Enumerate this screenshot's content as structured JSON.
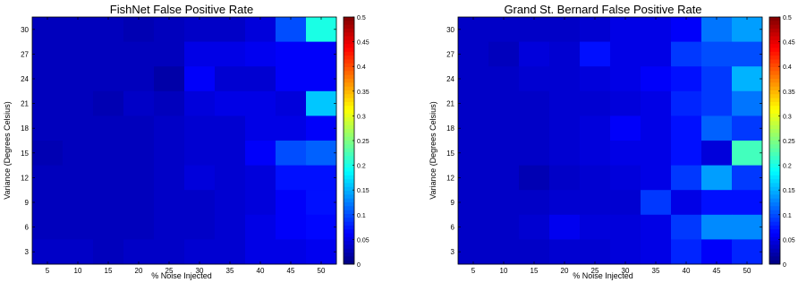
{
  "chart_data": [
    {
      "type": "heatmap",
      "title": "FishNet False Positive Rate",
      "xlabel": "% Noise Injected",
      "ylabel": "Variance (Degrees Celsius)",
      "x": [
        5,
        10,
        15,
        20,
        25,
        30,
        35,
        40,
        45,
        50
      ],
      "y": [
        3,
        6,
        9,
        12,
        15,
        18,
        21,
        24,
        27,
        30
      ],
      "x_tick_labels": [
        "5",
        "10",
        "15",
        "20",
        "25",
        "30",
        "35",
        "40",
        "45",
        "50"
      ],
      "y_tick_labels": [
        "3",
        "6",
        "9",
        "12",
        "15",
        "18",
        "21",
        "24",
        "27",
        "30"
      ],
      "colorbar_ticks": [
        "0",
        "0.05",
        "0.1",
        "0.15",
        "0.2",
        "0.25",
        "0.3",
        "0.35",
        "0.4",
        "0.45",
        "0.5"
      ],
      "clim": [
        0,
        0.5
      ],
      "colormap": "jet",
      "values_note_rows": "rows listed from y=30 (top) down to y=3 (bottom)",
      "values": [
        [
          0.03,
          0.03,
          0.03,
          0.025,
          0.03,
          0.035,
          0.035,
          0.045,
          0.1,
          0.2
        ],
        [
          0.03,
          0.03,
          0.03,
          0.03,
          0.03,
          0.05,
          0.05,
          0.055,
          0.06,
          0.06
        ],
        [
          0.03,
          0.03,
          0.03,
          0.03,
          0.02,
          0.06,
          0.04,
          0.04,
          0.06,
          0.06
        ],
        [
          0.03,
          0.03,
          0.025,
          0.035,
          0.03,
          0.045,
          0.05,
          0.05,
          0.045,
          0.16
        ],
        [
          0.03,
          0.03,
          0.03,
          0.03,
          0.035,
          0.04,
          0.04,
          0.05,
          0.05,
          0.06
        ],
        [
          0.025,
          0.03,
          0.03,
          0.03,
          0.035,
          0.04,
          0.04,
          0.06,
          0.1,
          0.11
        ],
        [
          0.03,
          0.03,
          0.03,
          0.03,
          0.035,
          0.045,
          0.04,
          0.045,
          0.07,
          0.07
        ],
        [
          0.03,
          0.03,
          0.03,
          0.03,
          0.035,
          0.035,
          0.04,
          0.045,
          0.06,
          0.07
        ],
        [
          0.03,
          0.03,
          0.03,
          0.03,
          0.035,
          0.035,
          0.04,
          0.05,
          0.06,
          0.065
        ],
        [
          0.035,
          0.035,
          0.03,
          0.035,
          0.035,
          0.04,
          0.04,
          0.05,
          0.05,
          0.055
        ]
      ]
    },
    {
      "type": "heatmap",
      "title": "Grand St. Bernard False Positive Rate",
      "xlabel": "% Noise Injected",
      "ylabel": "Variance (Degrees Celsius)",
      "x": [
        5,
        10,
        15,
        20,
        25,
        30,
        35,
        40,
        45,
        50
      ],
      "y": [
        3,
        6,
        9,
        12,
        15,
        18,
        21,
        24,
        27,
        30
      ],
      "x_tick_labels": [
        "5",
        "10",
        "15",
        "20",
        "25",
        "30",
        "35",
        "40",
        "45",
        "50"
      ],
      "y_tick_labels": [
        "3",
        "6",
        "9",
        "12",
        "15",
        "18",
        "21",
        "24",
        "27",
        "30"
      ],
      "colorbar_ticks": [
        "0",
        "0.05",
        "0.1",
        "0.15",
        "0.2",
        "0.25",
        "0.3",
        "0.35",
        "0.4",
        "0.45",
        "0.5"
      ],
      "clim": [
        0,
        0.5
      ],
      "colormap": "jet",
      "values_note_rows": "rows listed from y=30 (top) down to y=3 (bottom)",
      "values": [
        [
          0.035,
          0.035,
          0.035,
          0.035,
          0.04,
          0.05,
          0.05,
          0.06,
          0.12,
          0.14
        ],
        [
          0.035,
          0.03,
          0.045,
          0.04,
          0.07,
          0.05,
          0.05,
          0.09,
          0.1,
          0.1
        ],
        [
          0.035,
          0.035,
          0.04,
          0.04,
          0.045,
          0.05,
          0.06,
          0.07,
          0.09,
          0.15
        ],
        [
          0.035,
          0.035,
          0.035,
          0.04,
          0.04,
          0.045,
          0.05,
          0.08,
          0.09,
          0.12
        ],
        [
          0.035,
          0.035,
          0.035,
          0.04,
          0.045,
          0.06,
          0.05,
          0.07,
          0.11,
          0.09
        ],
        [
          0.035,
          0.035,
          0.035,
          0.04,
          0.045,
          0.05,
          0.05,
          0.07,
          0.045,
          0.22
        ],
        [
          0.035,
          0.035,
          0.025,
          0.035,
          0.04,
          0.045,
          0.05,
          0.09,
          0.14,
          0.09
        ],
        [
          0.035,
          0.035,
          0.035,
          0.04,
          0.04,
          0.04,
          0.09,
          0.05,
          0.07,
          0.07
        ],
        [
          0.035,
          0.035,
          0.04,
          0.055,
          0.045,
          0.045,
          0.05,
          0.09,
          0.13,
          0.13
        ],
        [
          0.035,
          0.035,
          0.035,
          0.04,
          0.04,
          0.045,
          0.05,
          0.08,
          0.06,
          0.08
        ]
      ]
    }
  ]
}
